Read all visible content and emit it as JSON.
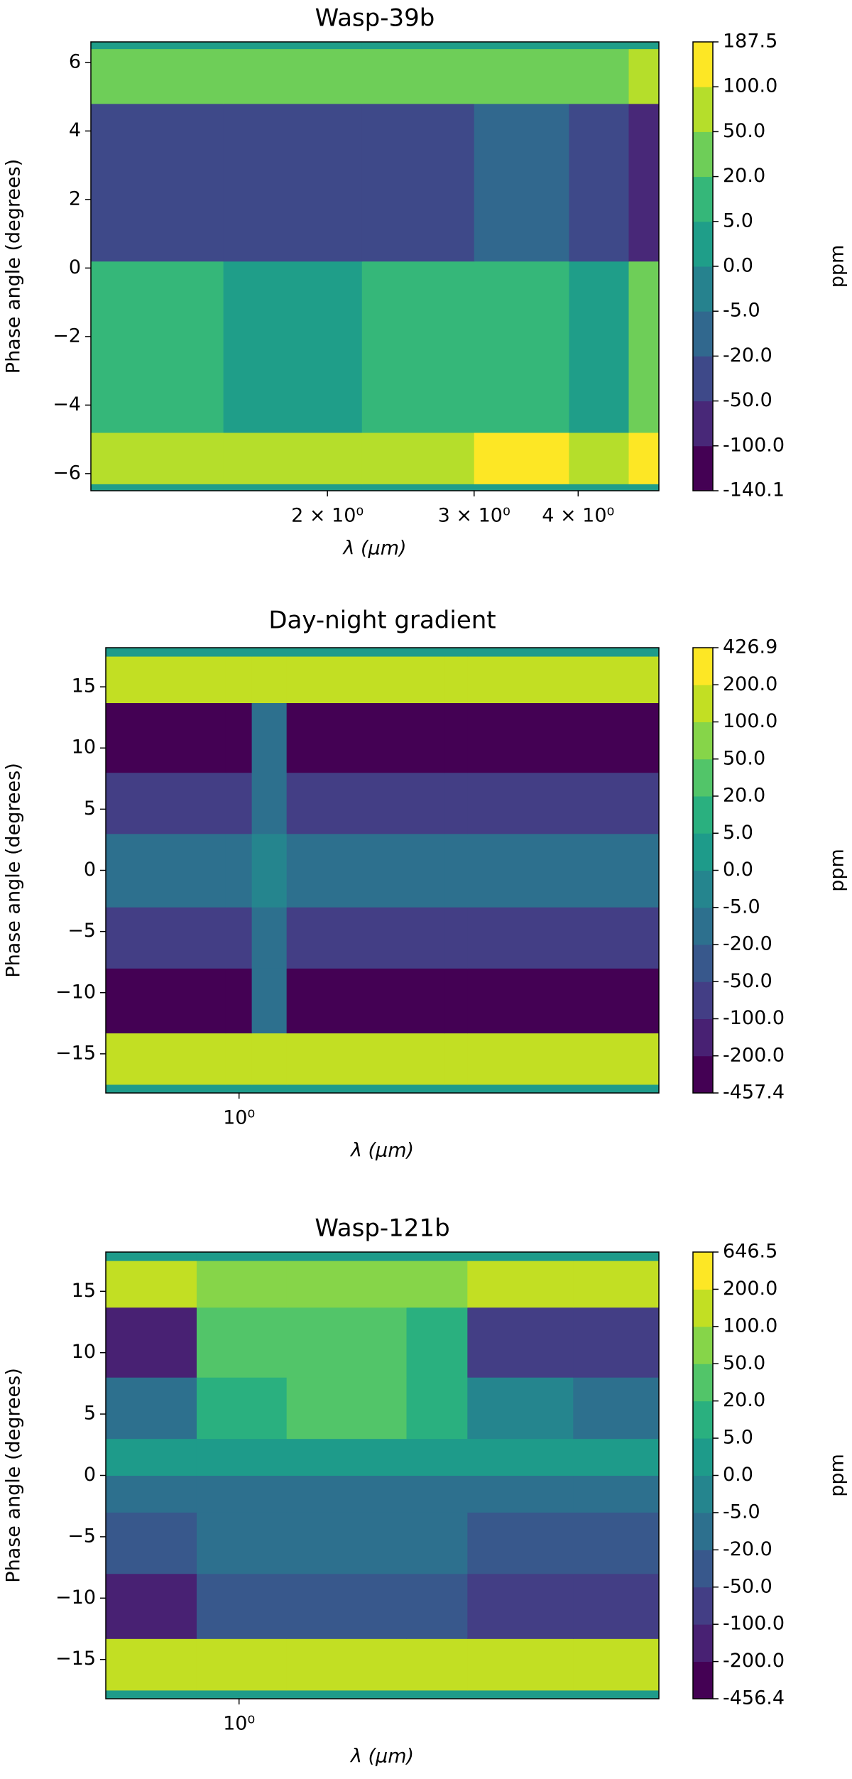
{
  "chart_data": [
    {
      "type": "heatmap",
      "title": "Wasp-39b",
      "xlabel": "λ (μm)",
      "ylabel": "Phase angle (degrees)",
      "xscale": "log",
      "xlim": [
        1.04,
        5.0
      ],
      "xticks": [
        {
          "value": 2,
          "label": "2 × 10⁰"
        },
        {
          "value": 3,
          "label": "3 × 10⁰"
        },
        {
          "value": 4,
          "label": "4 × 10⁰"
        }
      ],
      "ylim": [
        -6.5,
        6.6
      ],
      "yticks": [
        6,
        4,
        2,
        0,
        {
          "value": -2,
          "label": "−2"
        },
        {
          "value": -4,
          "label": "−4"
        },
        {
          "value": -6,
          "label": "−6"
        }
      ],
      "x_edges": [
        1.04,
        1.5,
        2.2,
        3.0,
        3.9,
        4.6,
        5.0
      ],
      "y_edges": [
        -6.5,
        -6.3,
        -4.8,
        0.2,
        4.8,
        6.4,
        6.6
      ],
      "z": [
        [
          2,
          2,
          2,
          2,
          2,
          2
        ],
        [
          70,
          60,
          80,
          110,
          60,
          150
        ],
        [
          10,
          3,
          10,
          15,
          3,
          30
        ],
        [
          -25,
          -30,
          -25,
          -20,
          -25,
          -60
        ],
        [
          40,
          35,
          40,
          45,
          35,
          70
        ],
        [
          2,
          2,
          2,
          2,
          2,
          2
        ]
      ],
      "colorbar": {
        "label": "ppm",
        "ticks": [
          -140.1,
          {
            "value": -100,
            "label": "-100.0"
          },
          {
            "value": -50,
            "label": "-50.0"
          },
          {
            "value": -20,
            "label": "-20.0"
          },
          {
            "value": -5,
            "label": "-5.0"
          },
          {
            "value": 0,
            "label": "0.0"
          },
          {
            "value": 5,
            "label": "5.0"
          },
          {
            "value": 20,
            "label": "20.0"
          },
          {
            "value": 50,
            "label": "50.0"
          },
          {
            "value": 100,
            "label": "100.0"
          },
          187.5
        ],
        "colors": [
          "#440154",
          "#482878",
          "#3e4989",
          "#31688e",
          "#26828e",
          "#1f9e89",
          "#35b779",
          "#6ece58",
          "#b5de2b",
          "#fde725"
        ]
      }
    },
    {
      "type": "heatmap",
      "title": "Day-night gradient",
      "xlabel": "λ (μm)",
      "ylabel": "Phase angle (degrees)",
      "xscale": "log",
      "xlim": [
        0.6,
        5.0
      ],
      "xticks": [
        {
          "value": 1,
          "label": "10⁰"
        }
      ],
      "ylim": [
        -18.2,
        18.2
      ],
      "yticks": [
        15,
        10,
        5,
        0,
        {
          "value": -5,
          "label": "−5"
        },
        {
          "value": -10,
          "label": "−10"
        },
        {
          "value": -15,
          "label": "−15"
        }
      ],
      "x_edges": [
        0.6,
        0.95,
        1.05,
        1.2,
        2.2,
        2.4,
        5.0
      ],
      "y_edges": [
        -18.2,
        -17.5,
        -13.3,
        -8,
        -3,
        3,
        8,
        13.7,
        17.5,
        18.2
      ],
      "z": [
        [
          3,
          3,
          3,
          3,
          3,
          3
        ],
        [
          120,
          110,
          120,
          110,
          180,
          130
        ],
        [
          -300,
          -250,
          -20,
          -250,
          -250,
          -300
        ],
        [
          -70,
          -70,
          -10,
          -70,
          -70,
          -70
        ],
        [
          -10,
          -10,
          -3,
          -10,
          -10,
          -10
        ],
        [
          -70,
          -70,
          -10,
          -70,
          -70,
          -70
        ],
        [
          -300,
          -250,
          -20,
          -250,
          -250,
          -300
        ],
        [
          120,
          110,
          120,
          110,
          180,
          130
        ],
        [
          3,
          3,
          3,
          3,
          3,
          3
        ]
      ],
      "colorbar": {
        "label": "ppm",
        "ticks": [
          -457.4,
          {
            "value": -200,
            "label": "-200.0"
          },
          {
            "value": -100,
            "label": "-100.0"
          },
          {
            "value": -50,
            "label": "-50.0"
          },
          {
            "value": -20,
            "label": "-20.0"
          },
          {
            "value": -5,
            "label": "-5.0"
          },
          {
            "value": 0,
            "label": "0.0"
          },
          {
            "value": 5,
            "label": "5.0"
          },
          {
            "value": 20,
            "label": "20.0"
          },
          {
            "value": 50,
            "label": "50.0"
          },
          {
            "value": 100,
            "label": "100.0"
          },
          {
            "value": 200,
            "label": "200.0"
          },
          426.9
        ],
        "colors": [
          "#440154",
          "#482173",
          "#433e85",
          "#38588c",
          "#2d708e",
          "#25858e",
          "#1e9b8a",
          "#2ab07f",
          "#52c569",
          "#86d549",
          "#c2df23",
          "#fde725"
        ]
      }
    },
    {
      "type": "heatmap",
      "title": "Wasp-121b",
      "xlabel": "λ (μm)",
      "ylabel": "Phase angle (degrees)",
      "xscale": "log",
      "xlim": [
        0.6,
        5.0
      ],
      "xticks": [
        {
          "value": 1,
          "label": "10⁰"
        }
      ],
      "ylim": [
        -18.2,
        18.2
      ],
      "yticks": [
        15,
        10,
        5,
        0,
        {
          "value": -5,
          "label": "−5"
        },
        {
          "value": -10,
          "label": "−10"
        },
        {
          "value": -15,
          "label": "−15"
        }
      ],
      "x_edges": [
        0.6,
        0.85,
        1.2,
        1.9,
        2.4,
        3.6,
        5.0
      ],
      "y_edges": [
        -18.2,
        -17.5,
        -13.3,
        -8,
        -3,
        0,
        3,
        8,
        13.7,
        17.5,
        18.2
      ],
      "z": [
        [
          3,
          3,
          3,
          3,
          3,
          3
        ],
        [
          150,
          110,
          100,
          100,
          160,
          150
        ],
        [
          -150,
          -40,
          -30,
          -30,
          -60,
          -70
        ],
        [
          -30,
          -20,
          -15,
          -15,
          -25,
          -30
        ],
        [
          -8,
          -8,
          -6,
          -6,
          -10,
          -10
        ],
        [
          3,
          3,
          3,
          3,
          3,
          3
        ],
        [
          -10,
          15,
          25,
          10,
          -5,
          -10
        ],
        [
          -110,
          30,
          40,
          10,
          -60,
          -70
        ],
        [
          110,
          70,
          90,
          80,
          130,
          120
        ],
        [
          3,
          3,
          3,
          3,
          3,
          3
        ]
      ],
      "colorbar": {
        "label": "ppm",
        "ticks": [
          -456.4,
          {
            "value": -200,
            "label": "-200.0"
          },
          {
            "value": -100,
            "label": "-100.0"
          },
          {
            "value": -50,
            "label": "-50.0"
          },
          {
            "value": -20,
            "label": "-20.0"
          },
          {
            "value": -5,
            "label": "-5.0"
          },
          {
            "value": 0,
            "label": "0.0"
          },
          {
            "value": 5,
            "label": "5.0"
          },
          {
            "value": 20,
            "label": "20.0"
          },
          {
            "value": 50,
            "label": "50.0"
          },
          {
            "value": 100,
            "label": "100.0"
          },
          {
            "value": 200,
            "label": "200.0"
          },
          646.5
        ],
        "colors": [
          "#440154",
          "#482173",
          "#433e85",
          "#38588c",
          "#2d708e",
          "#25858e",
          "#1e9b8a",
          "#2ab07f",
          "#52c569",
          "#86d549",
          "#c2df23",
          "#fde725"
        ]
      }
    }
  ]
}
